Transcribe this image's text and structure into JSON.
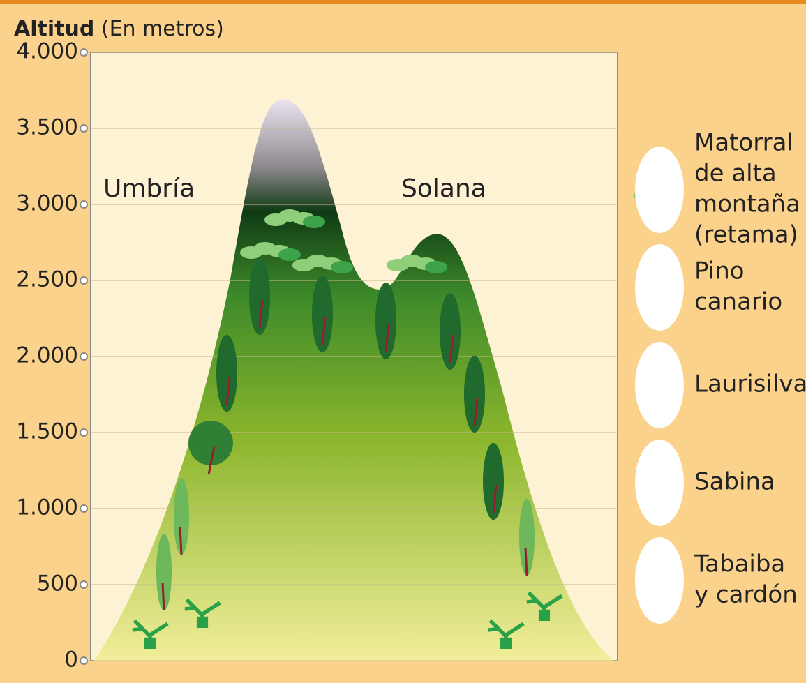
{
  "axis": {
    "title": "Altitud",
    "unit": "(En metros)",
    "ylim": [
      0,
      4000
    ],
    "yticks": [
      0,
      500,
      {
        "value": 1000,
        "label": "1.000"
      },
      {
        "value": 1500,
        "label": "1.500"
      },
      {
        "value": 2000,
        "label": "2.000"
      },
      {
        "value": 2500,
        "label": "2.500"
      },
      {
        "value": 3000,
        "label": "3.000"
      },
      {
        "value": 3500,
        "label": "3.500"
      },
      {
        "value": 4000,
        "label": "4.000"
      }
    ]
  },
  "labels": {
    "left": "Umbría",
    "right": "Solana"
  },
  "legend": [
    {
      "lines": [
        "Matorral",
        "de alta",
        "montaña",
        "(retama)"
      ]
    },
    {
      "lines": [
        "Pino",
        "canario"
      ]
    },
    {
      "lines": [
        "Laurisilva"
      ]
    },
    {
      "lines": [
        "Sabina"
      ]
    },
    {
      "lines": [
        "Tabaiba",
        "y cardón"
      ]
    }
  ]
}
